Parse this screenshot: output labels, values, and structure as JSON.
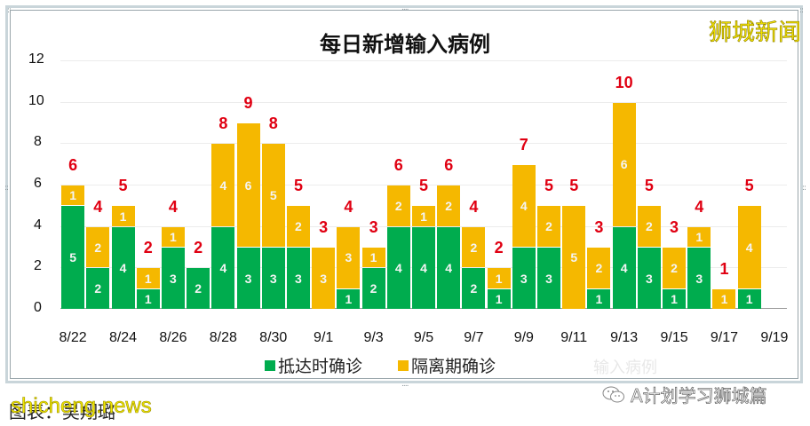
{
  "chart_data": {
    "type": "bar",
    "stacked": true,
    "title": "每日新增输入病例",
    "xlabel": "",
    "ylabel": "",
    "ylim": [
      0,
      12
    ],
    "yticks": [
      0,
      2,
      4,
      6,
      8,
      10,
      12
    ],
    "grid": true,
    "legend_position": "bottom",
    "categories": [
      "8/22",
      "8/23",
      "8/24",
      "8/25",
      "8/26",
      "8/27",
      "8/28",
      "8/29",
      "8/30",
      "8/31",
      "9/1",
      "9/2",
      "9/3",
      "9/4",
      "9/5",
      "9/6",
      "9/7",
      "9/8",
      "9/9",
      "9/10",
      "9/11",
      "9/12",
      "9/13",
      "9/14",
      "9/15",
      "9/16",
      "9/17",
      "9/18"
    ],
    "xtick_labels": [
      "8/22",
      "8/24",
      "8/26",
      "8/28",
      "8/30",
      "9/1",
      "9/3",
      "9/5",
      "9/7",
      "9/9",
      "9/11",
      "9/13",
      "9/15",
      "9/17",
      "9/19"
    ],
    "series": [
      {
        "name": "抵达时确诊",
        "color": "#00ac4e",
        "values": [
          5,
          2,
          4,
          1,
          3,
          2,
          4,
          3,
          3,
          3,
          0,
          1,
          2,
          4,
          4,
          4,
          2,
          1,
          3,
          3,
          0,
          1,
          4,
          3,
          1,
          3,
          0,
          1
        ]
      },
      {
        "name": "隔离期确诊",
        "color": "#f5b800",
        "values": [
          1,
          2,
          1,
          1,
          1,
          0,
          4,
          6,
          5,
          2,
          3,
          3,
          1,
          2,
          1,
          2,
          2,
          1,
          4,
          2,
          5,
          2,
          6,
          2,
          2,
          1,
          1,
          4
        ]
      }
    ],
    "totals": [
      6,
      4,
      5,
      2,
      4,
      2,
      8,
      9,
      8,
      5,
      3,
      4,
      3,
      6,
      5,
      6,
      4,
      2,
      7,
      5,
      5,
      3,
      10,
      5,
      3,
      4,
      1,
      5
    ],
    "total_label_color": "#e00012"
  },
  "page": {
    "brand": "狮城新闻",
    "ghost_text": "输入病例",
    "wechat_account": "A计划学习狮城篇",
    "caption": "图表：吴翔璐",
    "watermark": "shicheng.news"
  },
  "colors": {
    "green": "#00ac4e",
    "yellow": "#f5b800",
    "red": "#e00012"
  }
}
